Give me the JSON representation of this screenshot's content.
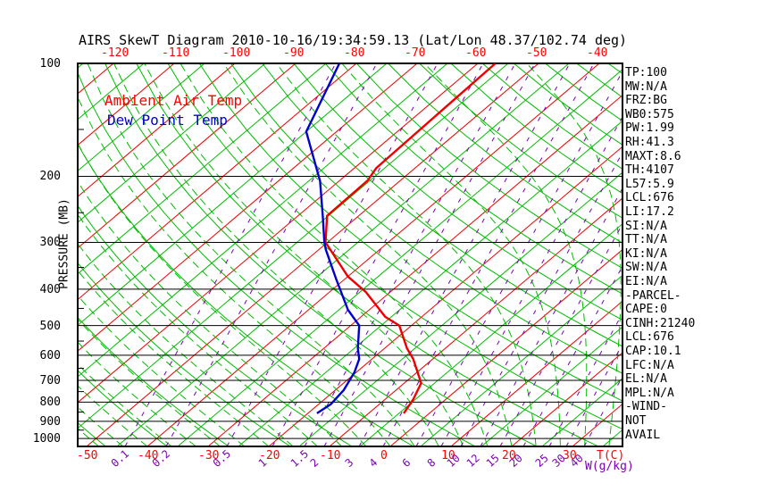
{
  "title": "AIRS SkewT Diagram 2010-10-16/19:34:59.13 (Lat/Lon 48.37/102.74 deg)",
  "legend": {
    "temp": "Ambient Air Temp",
    "dew": "Dew Point Temp"
  },
  "left_axis": {
    "title": "PRESSURE (MB)",
    "ticks": [
      100,
      200,
      300,
      400,
      500,
      600,
      700,
      800,
      900,
      1000
    ]
  },
  "top_axis": {
    "ticks": [
      -120,
      -110,
      -100,
      -90,
      -80,
      -70,
      -60,
      -50,
      -40
    ]
  },
  "bottom_axis": {
    "title": "T(C)",
    "ticks": [
      -50,
      -40,
      -30,
      -20,
      -10,
      0,
      10,
      20,
      30
    ]
  },
  "mixing_axis": {
    "title": "W(g/kg)",
    "ticks": [
      0.1,
      0.2,
      0.5,
      1,
      1.5,
      2,
      3,
      4,
      6,
      8,
      10,
      12,
      15,
      20,
      25,
      30,
      40
    ]
  },
  "right_panel": [
    "TP:100",
    "MW:N/A",
    "FRZ:BG",
    "WB0:575",
    "PW:1.99",
    "RH:41.3",
    "MAXT:8.6",
    "TH:4107",
    "L57:5.9",
    "LCL:676",
    "LI:17.2",
    "SI:N/A",
    "TT:N/A",
    "KI:N/A",
    "SW:N/A",
    "EI:N/A",
    "-PARCEL-",
    "CAPE:0",
    "CINH:21240",
    "LCL:676",
    "CAP:10.1",
    "LFC:N/A",
    "EL:N/A",
    "MPL:N/A",
    "-WIND-",
    "NOT",
    "AVAIL"
  ],
  "colors": {
    "isotherm_major": "#ee0000",
    "isotherm_minor": "#00bb00",
    "dry_adiabat": "#00bb00",
    "moist_adiabat": "#00bb00",
    "mixing_ratio": "#7a00b4",
    "pressure_line": "#000000",
    "temp_curve": "#ee0000",
    "dew_curve": "#0000cc",
    "label_red": "#ff0000",
    "label_purple": "#7a00b4"
  },
  "chart_data": {
    "type": "line",
    "subtype": "skew-t log-p",
    "title": "AIRS SkewT Diagram 2010-10-16/19:34:59.13 (Lat/Lon 48.37/102.74 deg)",
    "x_axis": {
      "label": "T(C)",
      "bottom_tick_range": [
        -50,
        30
      ],
      "top_tick_range": [
        -120,
        -40
      ],
      "tick_step": 10,
      "minor_isotherm_step": 5
    },
    "y_axis": {
      "label": "PRESSURE (MB)",
      "range": [
        100,
        1050
      ],
      "scale": "log",
      "ticks": [
        100,
        200,
        300,
        400,
        500,
        600,
        700,
        800,
        900,
        1000
      ]
    },
    "mixing_ratio_lines_g_per_kg": [
      0.1,
      0.2,
      0.5,
      1,
      1.5,
      2,
      3,
      4,
      6,
      8,
      10,
      12,
      15,
      20,
      25,
      30,
      40
    ],
    "mixing_label_x": [
      140,
      186,
      254,
      305,
      341,
      363,
      402,
      429,
      466,
      494,
      516,
      538,
      560,
      586,
      615,
      634,
      654
    ],
    "grid": {
      "isotherms": true,
      "dry_adiabats": true,
      "moist_adiabats_dashed": true,
      "mixing_ratio_dashed": true
    },
    "legend_position": "top-left",
    "series": [
      {
        "name": "Ambient Air Temp",
        "color": "#ee0000",
        "points_p_mb_t_c": [
          [
            100,
            -57.1
          ],
          [
            190,
            -56.4
          ],
          [
            205,
            -55.4
          ],
          [
            255,
            -55.2
          ],
          [
            300,
            -50.3
          ],
          [
            370,
            -40.0
          ],
          [
            407,
            -34.0
          ],
          [
            474,
            -26.0
          ],
          [
            500,
            -22.0
          ],
          [
            575,
            -16.3
          ],
          [
            614,
            -13.2
          ],
          [
            712,
            -7.2
          ],
          [
            785,
            -5.4
          ],
          [
            857,
            -4.2
          ]
        ]
      },
      {
        "name": "Dew Point Temp",
        "color": "#0000cc",
        "points_p_mb_t_c": [
          [
            100,
            -82.8
          ],
          [
            152,
            -75.0
          ],
          [
            206,
            -63.1
          ],
          [
            255,
            -55.9
          ],
          [
            300,
            -50.5
          ],
          [
            314,
            -48.8
          ],
          [
            377,
            -41.3
          ],
          [
            454,
            -33.5
          ],
          [
            500,
            -28.6
          ],
          [
            575,
            -24.4
          ],
          [
            614,
            -22.1
          ],
          [
            666,
            -20.3
          ],
          [
            743,
            -18.6
          ],
          [
            811,
            -18.0
          ],
          [
            857,
            -18.5
          ]
        ]
      }
    ]
  }
}
